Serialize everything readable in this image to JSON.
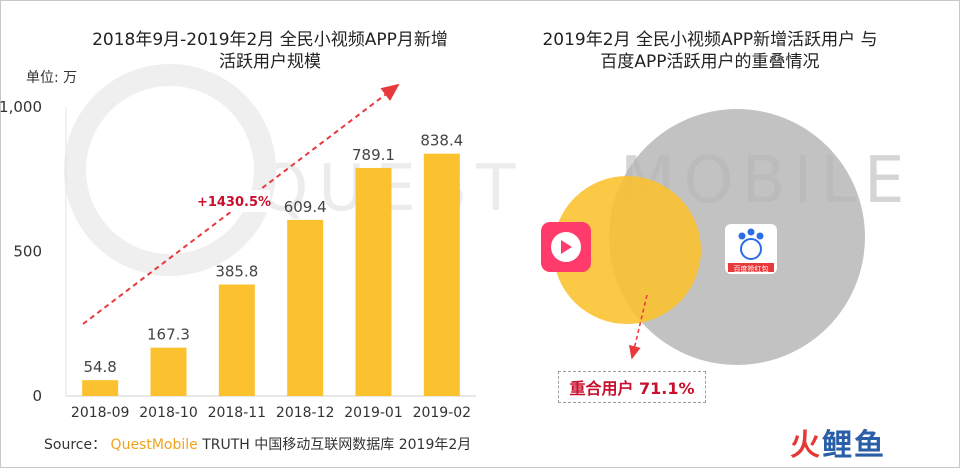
{
  "left_title": [
    "2018年9月-2019年2月 全民小视频APP月新增",
    "活跃用户规模"
  ],
  "right_title": [
    "2019年2月 全民小视频APP新增活跃用户 与",
    "百度APP活跃用户的重叠情况"
  ],
  "unit_label": "单位: 万",
  "annotation_growth": "+1430.5%",
  "overlap_label": "重合用户 71.1%",
  "source": {
    "prefix": "Source：",
    "brand": "QuestMobile",
    "rest": " TRUTH 中国移动互联网数据库 2019年2月"
  },
  "watermark": {
    "left": "QUEST",
    "right": "MOBILE"
  },
  "corner_logo": {
    "part1": "火",
    "part2": "鲤鱼"
  },
  "app_icons": [
    {
      "name": "quanmin-video-icon",
      "color": "#ff3b6b"
    },
    {
      "name": "baidu-app-icon",
      "color": "#2b6de5",
      "caption": "百度抢红包"
    }
  ],
  "colors": {
    "bar": "#fcc12e",
    "red": "#e8393c",
    "venn_small": "#fcc12e",
    "venn_large": "#b5b5b5"
  },
  "chart_data": [
    {
      "type": "bar",
      "categories": [
        "2018-09",
        "2018-10",
        "2018-11",
        "2018-12",
        "2019-01",
        "2019-02"
      ],
      "values": [
        54.8,
        167.3,
        385.8,
        609.4,
        789.1,
        838.4
      ],
      "value_labels": [
        "54.8",
        "167.3",
        "385.8",
        "609.4",
        "789.1",
        "838.4"
      ],
      "ylim": [
        0,
        1000
      ],
      "yticks": [
        0,
        500,
        1000
      ],
      "ytick_labels": [
        "0",
        "500",
        "1,000"
      ],
      "grid": false,
      "legend": "none"
    },
    {
      "type": "venn",
      "sets": [
        "全民小视频APP新增活跃用户",
        "百度APP活跃用户"
      ],
      "overlap_share": 71.1
    }
  ]
}
